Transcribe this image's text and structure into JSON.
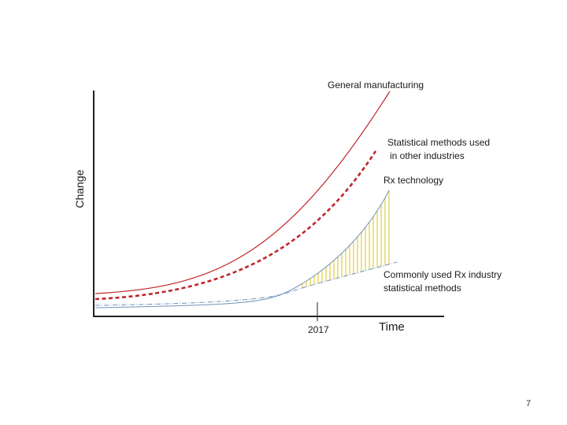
{
  "diagram": {
    "y_axis_label": "Change",
    "x_axis_label": "Time",
    "x_tick_label": "2017",
    "curves": {
      "general_manufacturing": {
        "label": "General manufacturing",
        "color": "#c0262c"
      },
      "statistical_methods_other": {
        "label_line1": "Statistical methods used",
        "label_line2": "in other industries",
        "color": "#c0262c"
      },
      "rx_technology": {
        "label": "Rx technology",
        "color": "#6f93b8"
      },
      "commonly_used_rx_methods": {
        "label_line1": "Commonly used Rx industry",
        "label_line2": "statistical methods",
        "color": "#6f93b8"
      }
    },
    "gap_fill_color": "#e3d35a"
  },
  "page": {
    "number": "7"
  }
}
